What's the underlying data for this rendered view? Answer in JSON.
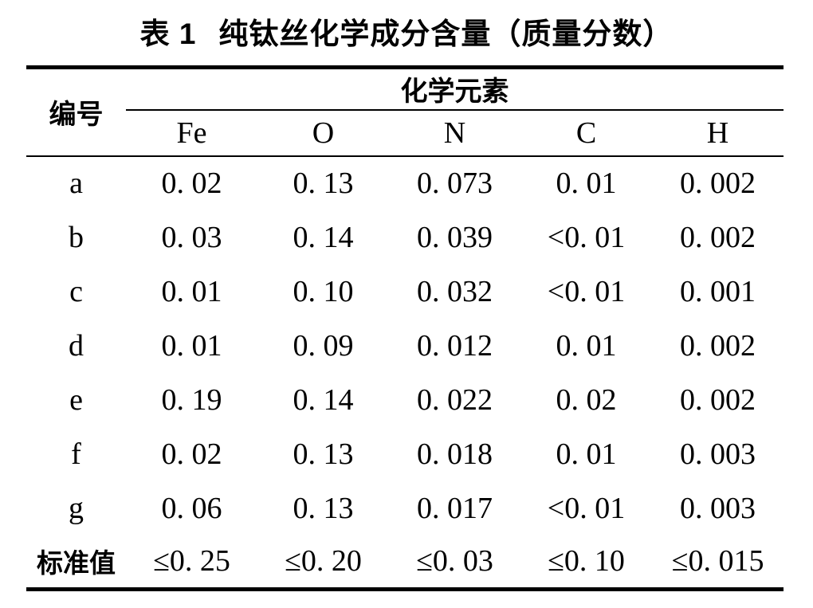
{
  "title": {
    "prefix": "表 1",
    "main": "纯钛丝化学成分含量（质量分数）"
  },
  "table": {
    "corner_header": "编号",
    "group_header": "化学元素",
    "element_columns": [
      "Fe",
      "O",
      "N",
      "C",
      "H"
    ],
    "rows": [
      {
        "label": "a",
        "values": [
          "0. 02",
          "0. 13",
          "0. 073",
          "0. 01",
          "0. 002"
        ]
      },
      {
        "label": "b",
        "values": [
          "0. 03",
          "0. 14",
          "0. 039",
          "<0. 01",
          "0. 002"
        ]
      },
      {
        "label": "c",
        "values": [
          "0. 01",
          "0. 10",
          "0. 032",
          "<0. 01",
          "0. 001"
        ]
      },
      {
        "label": "d",
        "values": [
          "0. 01",
          "0. 09",
          "0. 012",
          "0. 01",
          "0. 002"
        ]
      },
      {
        "label": "e",
        "values": [
          "0. 19",
          "0. 14",
          "0. 022",
          "0. 02",
          "0. 002"
        ]
      },
      {
        "label": "f",
        "values": [
          "0. 02",
          "0. 13",
          "0. 018",
          "0. 01",
          "0. 003"
        ]
      },
      {
        "label": "g",
        "values": [
          "0. 06",
          "0. 13",
          "0. 017",
          "<0. 01",
          "0. 003"
        ]
      },
      {
        "label": "标准值",
        "values": [
          "≤0. 25",
          "≤0. 20",
          "≤0. 03",
          "≤0. 10",
          "≤0. 015"
        ]
      }
    ]
  },
  "colors": {
    "text": "#000000",
    "background": "#ffffff",
    "rule": "#000000"
  }
}
